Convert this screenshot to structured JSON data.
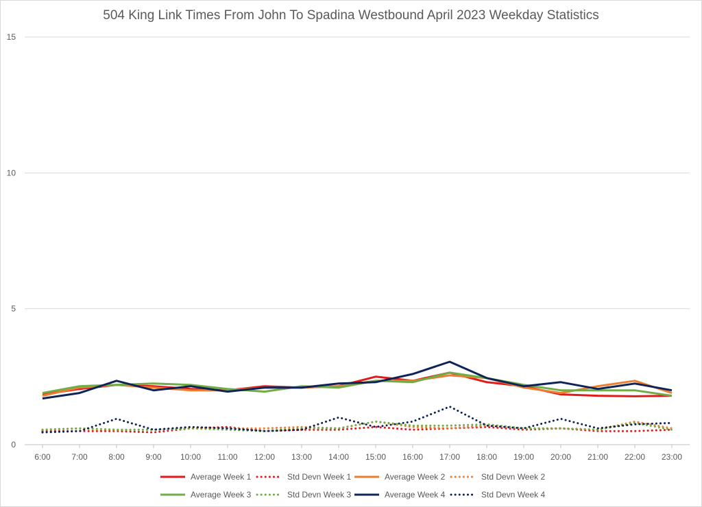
{
  "chart_data": {
    "type": "line",
    "title": "504 King Link Times From John To Spadina Westbound April 2023 Weekday Statistics",
    "xlabel": "",
    "ylabel": "",
    "ylim": [
      0,
      15
    ],
    "yticks": [
      "0",
      "5",
      "10",
      "15"
    ],
    "grid": true,
    "legend_position": "bottom",
    "categories": [
      "6:00",
      "7:00",
      "8:00",
      "9:00",
      "10:00",
      "11:00",
      "12:00",
      "13:00",
      "14:00",
      "15:00",
      "16:00",
      "17:00",
      "18:00",
      "19:00",
      "20:00",
      "21:00",
      "22:00",
      "23:00"
    ],
    "series": [
      {
        "name": "Average Week 1",
        "color": "#e31a1c",
        "style": "solid",
        "values": [
          1.85,
          2.05,
          2.2,
          2.15,
          2.05,
          2.0,
          2.15,
          2.1,
          2.15,
          2.5,
          2.35,
          2.65,
          2.3,
          2.15,
          1.85,
          1.8,
          1.78,
          1.8
        ]
      },
      {
        "name": "Std Devn Week 1",
        "color": "#e31a1c",
        "style": "dotted",
        "values": [
          0.5,
          0.5,
          0.5,
          0.45,
          0.6,
          0.65,
          0.5,
          0.55,
          0.55,
          0.65,
          0.55,
          0.6,
          0.65,
          0.55,
          0.6,
          0.5,
          0.5,
          0.55
        ]
      },
      {
        "name": "Average Week 2",
        "color": "#ed7d31",
        "style": "solid",
        "values": [
          1.8,
          2.1,
          2.2,
          2.1,
          2.0,
          2.0,
          2.1,
          2.1,
          2.15,
          2.35,
          2.35,
          2.55,
          2.45,
          2.1,
          1.9,
          2.15,
          2.35,
          1.9
        ]
      },
      {
        "name": "Std Devn Week 2",
        "color": "#ed7d31",
        "style": "dotted",
        "values": [
          0.55,
          0.6,
          0.55,
          0.55,
          0.6,
          0.6,
          0.6,
          0.65,
          0.6,
          0.85,
          0.65,
          0.6,
          0.7,
          0.6,
          0.6,
          0.55,
          0.85,
          0.6
        ]
      },
      {
        "name": "Average Week 3",
        "color": "#70ad47",
        "style": "solid",
        "values": [
          1.9,
          2.15,
          2.2,
          2.25,
          2.2,
          2.05,
          1.95,
          2.15,
          2.1,
          2.35,
          2.3,
          2.65,
          2.45,
          2.2,
          2.0,
          2.0,
          2.0,
          1.8
        ]
      },
      {
        "name": "Std Devn Week 3",
        "color": "#70ad47",
        "style": "dotted",
        "values": [
          0.55,
          0.6,
          0.55,
          0.55,
          0.6,
          0.55,
          0.5,
          0.6,
          0.6,
          0.85,
          0.7,
          0.7,
          0.75,
          0.6,
          0.6,
          0.55,
          0.8,
          0.55
        ]
      },
      {
        "name": "Average Week 4",
        "color": "#0e2357",
        "style": "solid",
        "values": [
          1.7,
          1.9,
          2.35,
          2.0,
          2.15,
          1.95,
          2.1,
          2.1,
          2.25,
          2.3,
          2.6,
          3.05,
          2.45,
          2.15,
          2.3,
          2.05,
          2.25,
          2.0
        ]
      },
      {
        "name": "Std Devn Week 4",
        "color": "#0e2357",
        "style": "dotted",
        "values": [
          0.45,
          0.5,
          0.95,
          0.55,
          0.65,
          0.6,
          0.5,
          0.55,
          1.0,
          0.65,
          0.85,
          1.4,
          0.7,
          0.6,
          0.95,
          0.6,
          0.75,
          0.8
        ]
      }
    ]
  }
}
